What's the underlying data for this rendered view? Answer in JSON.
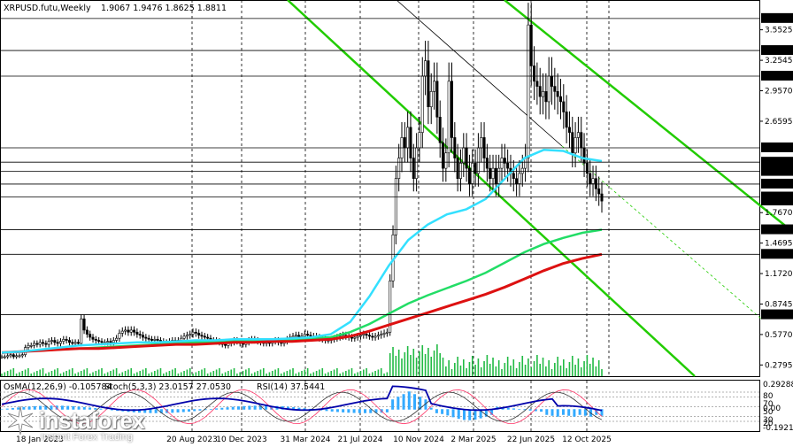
{
  "header": {
    "symbol": "XRPUSD.futu,Weekly",
    "ohlc": "1.9067 1.9476 1.8625 1.8811"
  },
  "indicator_header": {
    "osma": "OsMA(12,26,9) -0.105784",
    "stoch": "Stoch(5,3,3) 23.0157 27.0530",
    "rsi": "RSI(14) 37.5441"
  },
  "colors": {
    "background": "#ffffff",
    "grid": "#000000",
    "candles": "#000000",
    "ma_fast": "#33e0ff",
    "ma_mid": "#22dd66",
    "ma_slow": "#dd1111",
    "channel": "#22cc00",
    "osma_hist": "#33aaff",
    "stoch_main": "#0000aa",
    "stoch_signal": "#ff3366",
    "rsi": "#222244",
    "level_label_bg": "#000000",
    "level_label_fg": "#ffffff"
  },
  "brand": {
    "name": "instaforex",
    "tagline": "Instant Forex Trading"
  },
  "chart_data": {
    "type": "candlestick",
    "price_axis_ticks": [
      "3.5525",
      "3.2545",
      "2.9570",
      "2.6595",
      "1.7670",
      "1.4695",
      "1.1720",
      "0.8745",
      "0.5770",
      "0.2795"
    ],
    "highlighted_levels": [
      "3.6630",
      "3.3500",
      "3.1000",
      "2.4000",
      "2.2600",
      "2.1700",
      "2.0460",
      "1.9200",
      "1.8811",
      "1.6000",
      "1.3600",
      "0.7700"
    ],
    "current_price": "1.8811",
    "x_tick_labels": [
      "18 Jan 2023",
      "20 Aug 2023",
      "10 Dec 2023",
      "31 Mar 2024",
      "21 Jul 2024",
      "10 Nov 2024",
      "2 Mar 2025",
      "22 Jun 2025",
      "12 Oct 2025"
    ],
    "ohlc_close_path": [
      0.36,
      0.36,
      0.37,
      0.38,
      0.36,
      0.37,
      0.37,
      0.38,
      0.45,
      0.47,
      0.47,
      0.49,
      0.48,
      0.5,
      0.49,
      0.48,
      0.51,
      0.52,
      0.5,
      0.49,
      0.51,
      0.53,
      0.52,
      0.5,
      0.49,
      0.5,
      0.49,
      0.73,
      0.62,
      0.58,
      0.55,
      0.53,
      0.52,
      0.51,
      0.5,
      0.5,
      0.51,
      0.5,
      0.52,
      0.54,
      0.59,
      0.61,
      0.62,
      0.6,
      0.62,
      0.6,
      0.58,
      0.57,
      0.55,
      0.54,
      0.53,
      0.52,
      0.53,
      0.52,
      0.51,
      0.5,
      0.5,
      0.51,
      0.52,
      0.5,
      0.52,
      0.54,
      0.56,
      0.57,
      0.58,
      0.6,
      0.59,
      0.57,
      0.56,
      0.55,
      0.54,
      0.52,
      0.52,
      0.51,
      0.5,
      0.48,
      0.47,
      0.49,
      0.5,
      0.52,
      0.51,
      0.49,
      0.48,
      0.5,
      0.52,
      0.53,
      0.52,
      0.51,
      0.5,
      0.49,
      0.5,
      0.49,
      0.51,
      0.52,
      0.5,
      0.49,
      0.51,
      0.53,
      0.55,
      0.56,
      0.57,
      0.55,
      0.56,
      0.58,
      0.57,
      0.55,
      0.56,
      0.55,
      0.54,
      0.53,
      0.52,
      0.52,
      0.53,
      0.54,
      0.55,
      0.56,
      0.57,
      0.56,
      0.55,
      0.54,
      0.55,
      0.56,
      0.57,
      0.58,
      0.57,
      0.56,
      0.55,
      0.56,
      0.57,
      0.58,
      0.59,
      0.6,
      1.1,
      1.55,
      2.1,
      2.3,
      2.5,
      2.4,
      2.6,
      2.3,
      2.1,
      2.4,
      2.55,
      3.1,
      3.25,
      2.8,
      2.95,
      3.05,
      2.7,
      2.45,
      2.2,
      2.35,
      3.05,
      2.5,
      2.3,
      2.1,
      2.25,
      2.4,
      2.2,
      2.05,
      2.25,
      2.15,
      2.4,
      2.5,
      2.3,
      2.2,
      2.1,
      2.2,
      2.05,
      2.2,
      2.3,
      2.25,
      2.2,
      2.15,
      2.1,
      2.05,
      2.15,
      2.2,
      2.3,
      3.6,
      3.2,
      3.05,
      3.0,
      2.9,
      2.95,
      2.85,
      3.1,
      3.0,
      2.95,
      2.9,
      2.85,
      2.75,
      2.6,
      2.55,
      2.35,
      2.5,
      2.55,
      2.4,
      2.25,
      2.15,
      2.05,
      2.1,
      2.0,
      1.95,
      1.88
    ],
    "ma_fast": [
      0.4,
      0.41,
      0.43,
      0.45,
      0.47,
      0.48,
      0.49,
      0.5,
      0.5,
      0.51,
      0.52,
      0.52,
      0.53,
      0.53,
      0.53,
      0.54,
      0.55,
      0.58,
      0.7,
      0.95,
      1.25,
      1.5,
      1.65,
      1.75,
      1.8,
      1.9,
      2.1,
      2.3,
      2.38,
      2.37,
      2.3,
      2.27
    ],
    "ma_mid": [
      0.4,
      0.41,
      0.42,
      0.43,
      0.44,
      0.45,
      0.46,
      0.47,
      0.48,
      0.49,
      0.5,
      0.51,
      0.51,
      0.52,
      0.52,
      0.53,
      0.54,
      0.55,
      0.6,
      0.68,
      0.78,
      0.88,
      0.96,
      1.03,
      1.1,
      1.18,
      1.28,
      1.38,
      1.46,
      1.52,
      1.57,
      1.6
    ],
    "ma_slow": [
      0.4,
      0.41,
      0.42,
      0.43,
      0.44,
      0.44,
      0.45,
      0.46,
      0.47,
      0.48,
      0.48,
      0.49,
      0.5,
      0.5,
      0.51,
      0.51,
      0.52,
      0.53,
      0.56,
      0.61,
      0.67,
      0.73,
      0.79,
      0.85,
      0.91,
      0.97,
      1.04,
      1.12,
      1.2,
      1.27,
      1.32,
      1.36
    ],
    "osma_axis_ticks": [
      "0.29288",
      "80",
      "70",
      "50",
      "30",
      "20",
      "0.00",
      "-0.19214"
    ],
    "stoch_levels": [
      80,
      20
    ],
    "rsi_levels": [
      70,
      50,
      30
    ]
  }
}
